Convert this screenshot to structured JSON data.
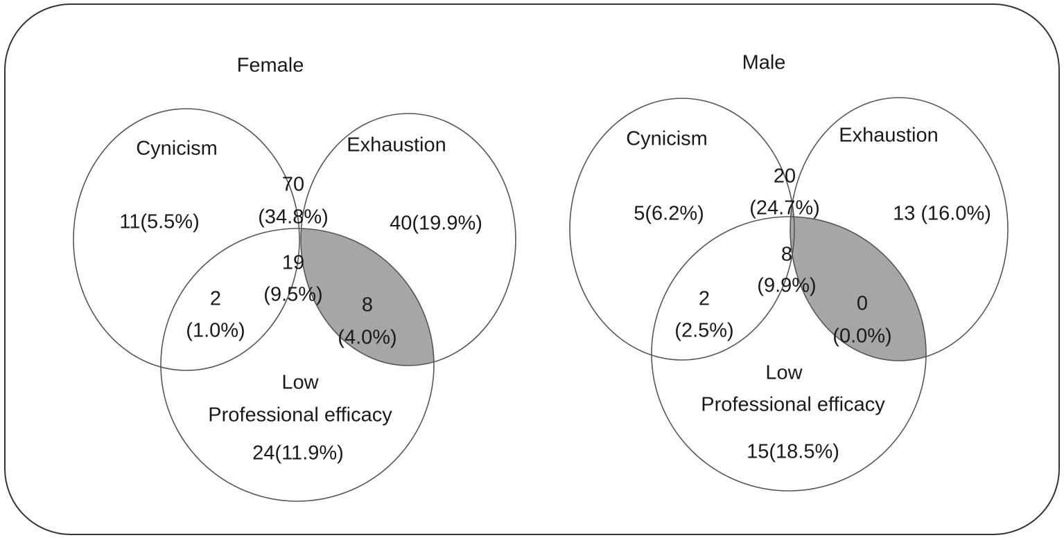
{
  "colors": {
    "shade": "#a6a6a6",
    "stroke": "#555555",
    "text": "#1a1a1a"
  },
  "female": {
    "title": "Female",
    "labels": {
      "cynicism": "Cynicism",
      "exhaustion": "Exhaustion",
      "low": "Low",
      "professional_efficacy": "Professional efficacy"
    },
    "regions": {
      "cynicism_only": "11(5.5%)",
      "exhaustion_only": "40(19.9%)",
      "cyn_exh_count": "70",
      "cyn_exh_pct": "(34.8%)",
      "all_count": "19",
      "all_pct": "(9.5%)",
      "cyn_pe_count": "2",
      "cyn_pe_pct": "(1.0%)",
      "exh_pe_count": "8",
      "exh_pe_pct": "(4.0%)",
      "pe_only": "24(11.9%)"
    }
  },
  "male": {
    "title": "Male",
    "labels": {
      "cynicism": "Cynicism",
      "exhaustion": "Exhaustion",
      "low": "Low",
      "professional_efficacy": "Professional efficacy"
    },
    "regions": {
      "cynicism_only": "5(6.2%)",
      "exhaustion_only": "13 (16.0%)",
      "cyn_exh_count": "20",
      "cyn_exh_pct": "(24.7%)",
      "all_count": "8",
      "all_pct": "(9.9%)",
      "cyn_pe_count": "2",
      "cyn_pe_pct": "(2.5%)",
      "exh_pe_count": "0",
      "exh_pe_pct": "(0.0%)",
      "pe_only": "15(18.5%)"
    }
  }
}
